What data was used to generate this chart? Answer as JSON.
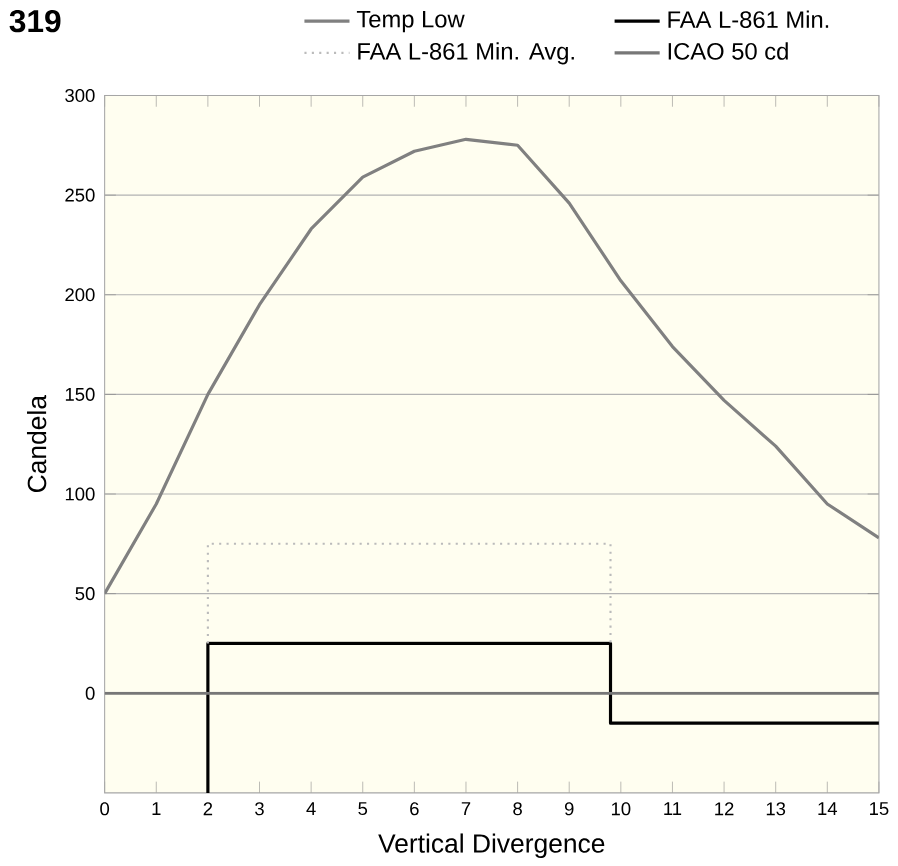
{
  "chart_data": {
    "type": "line",
    "xlabel": "Vertical Divergence",
    "ylabel": "Candela",
    "annotations": [
      "319"
    ],
    "xlim": [
      0,
      15
    ],
    "ylim": [
      -50,
      300
    ],
    "xticks": [
      0,
      1,
      2,
      3,
      4,
      5,
      6,
      7,
      8,
      9,
      10,
      11,
      12,
      13,
      14,
      15
    ],
    "yticks": [
      0,
      50,
      100,
      150,
      200,
      250,
      300
    ],
    "grid": "y",
    "legend": "top",
    "marker": "none",
    "series": [
      {
        "name": "Temp Low",
        "color": "#808080",
        "x": [
          0,
          1,
          2,
          3,
          4,
          5,
          6,
          7,
          8,
          9,
          10,
          11,
          12,
          13,
          14,
          15
        ],
        "values": [
          50,
          95,
          150,
          195,
          233,
          259,
          272,
          278,
          275,
          246,
          207,
          174,
          147,
          124,
          95,
          78
        ]
      },
      {
        "name": "FAA L-861 Min.",
        "color": "#000000",
        "x": [
          2,
          2,
          9.8,
          9.8,
          15
        ],
        "values": [
          -50,
          25,
          25,
          -15,
          -15
        ]
      },
      {
        "name": "FAA L-861 Min. Avg.",
        "color": "#bbbbbb",
        "line_style": "dotted",
        "x": [
          2,
          2,
          9.8,
          9.8
        ],
        "values": [
          25,
          75,
          75,
          25
        ]
      },
      {
        "name": "ICAO 50 cd",
        "color": "#777777",
        "x": [
          0,
          15
        ],
        "values": [
          0,
          0
        ]
      }
    ]
  }
}
